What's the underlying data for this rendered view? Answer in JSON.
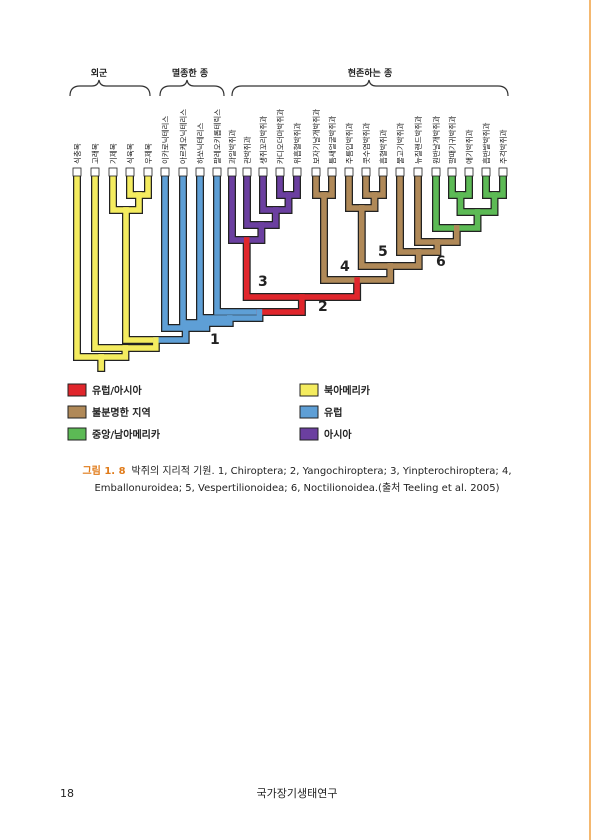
{
  "figure": {
    "groups": [
      "외군",
      "멸종한 종",
      "현존하는 종"
    ],
    "leaves": [
      "식충목",
      "고래목",
      "기제목",
      "식육목",
      "우제목",
      "이카로닉테리스",
      "아르케오닉테리스",
      "하쏘닉테리스",
      "팔레오키롭테릭스",
      "과일박쥐과",
      "관박쥐과",
      "생쥐꼬리박쥐과",
      "카디오더마박쥐과",
      "위흡혈박쥐과",
      "보자기날개박쥐과",
      "틈새얼굴박쥐과",
      "주름입박쥐과",
      "콧수염박쥐과",
      "흡혈박쥐과",
      "물고기박쥐과",
      "뉴질랜드박쥐과",
      "원반날개박쥐과",
      "깔때기귀박쥐과",
      "애기박쥐과",
      "흡반발박쥐과",
      "주걱박쥐과"
    ],
    "node_labels": [
      "1",
      "2",
      "3",
      "4",
      "5",
      "6"
    ],
    "legend": [
      "유럽/아시아",
      "불분명한 지역",
      "중앙/남아메리카",
      "북아메리카",
      "유럽",
      "아시아"
    ]
  },
  "caption": {
    "label": "그림 1. 8",
    "lines": [
      "박쥐의 지리적 기원. 1, Chiroptera; 2, Yangochiroptera; 3, Yinpterochiroptera; 4,",
      "Emballonuroidea; 5, Vespertilionoidea; 6, Noctilionoidea.(출처 Teeling et al. 2005)"
    ]
  },
  "footer": {
    "page": "18",
    "title": "국가장기생태연구"
  }
}
